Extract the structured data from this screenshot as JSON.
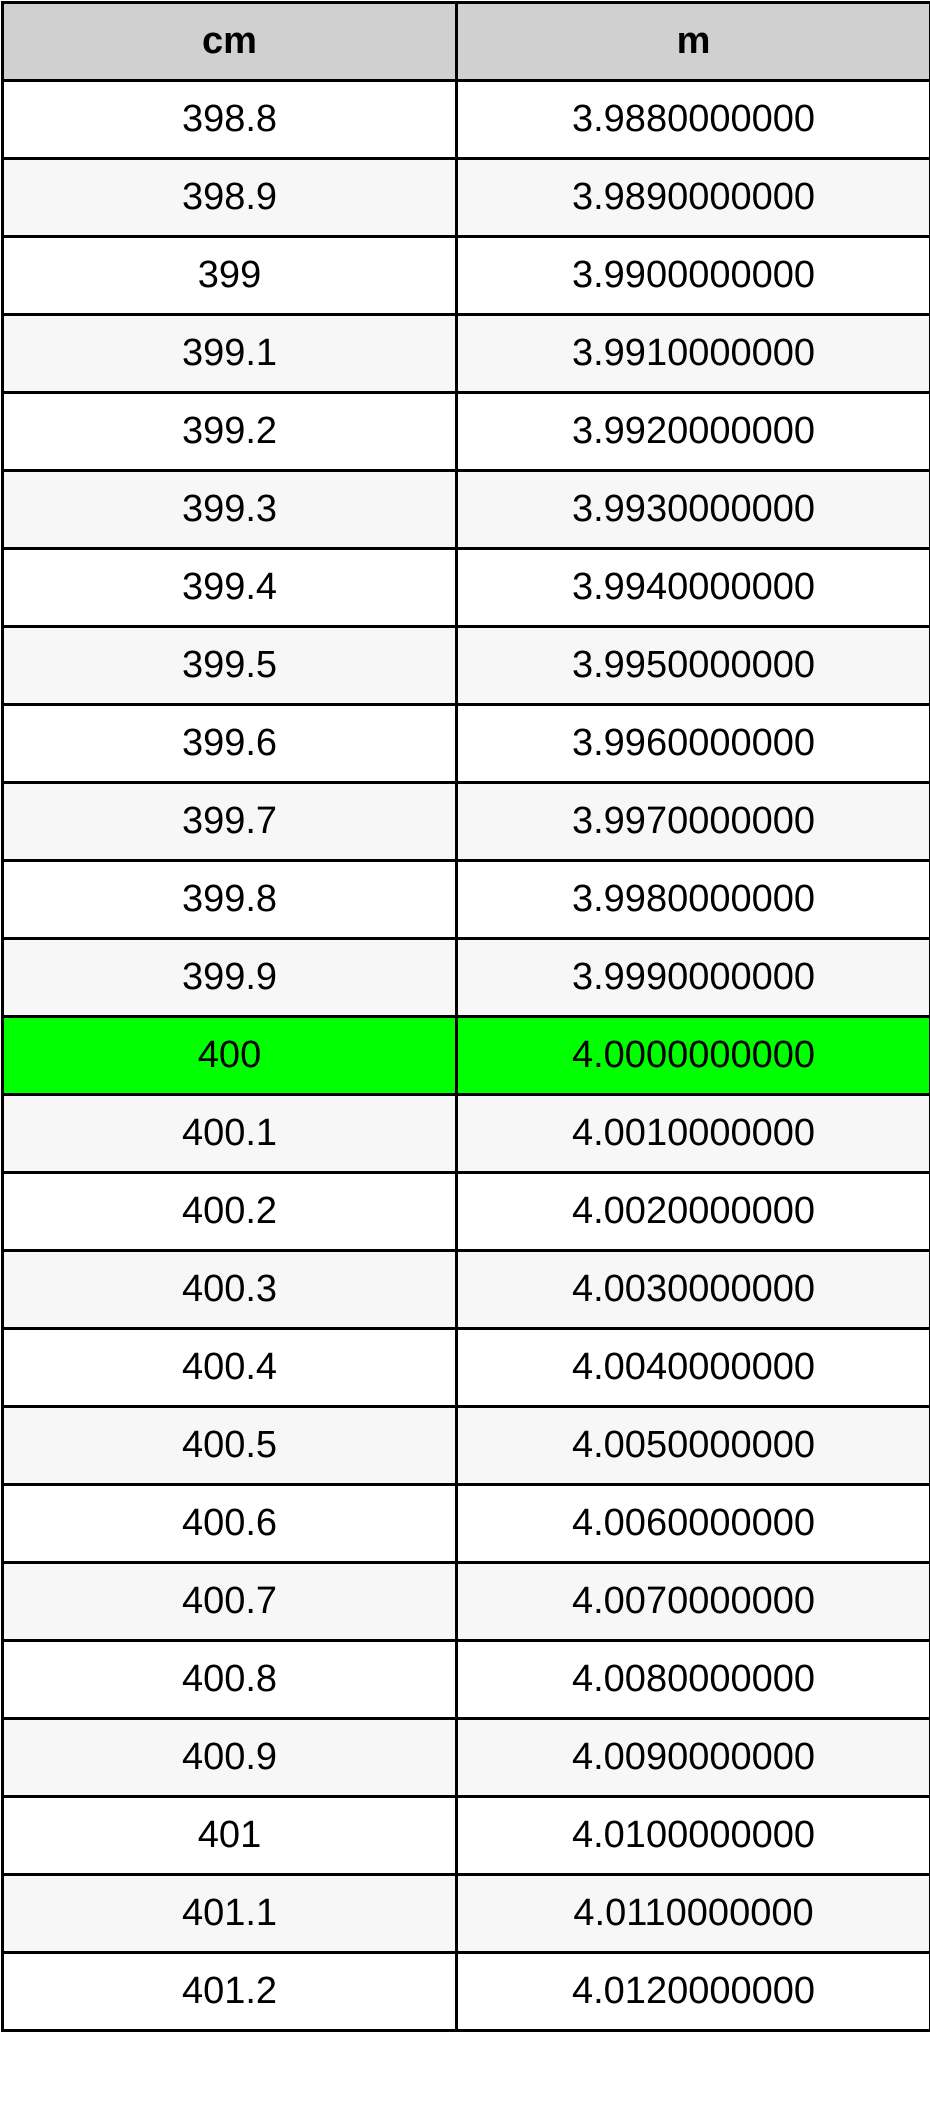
{
  "table": {
    "headers": [
      "cm",
      "m"
    ],
    "highlight_color": "#00ff00",
    "highlighted_row": 12,
    "rows": [
      [
        "398.8",
        "3.9880000000"
      ],
      [
        "398.9",
        "3.9890000000"
      ],
      [
        "399",
        "3.9900000000"
      ],
      [
        "399.1",
        "3.9910000000"
      ],
      [
        "399.2",
        "3.9920000000"
      ],
      [
        "399.3",
        "3.9930000000"
      ],
      [
        "399.4",
        "3.9940000000"
      ],
      [
        "399.5",
        "3.9950000000"
      ],
      [
        "399.6",
        "3.9960000000"
      ],
      [
        "399.7",
        "3.9970000000"
      ],
      [
        "399.8",
        "3.9980000000"
      ],
      [
        "399.9",
        "3.9990000000"
      ],
      [
        "400",
        "4.0000000000"
      ],
      [
        "400.1",
        "4.0010000000"
      ],
      [
        "400.2",
        "4.0020000000"
      ],
      [
        "400.3",
        "4.0030000000"
      ],
      [
        "400.4",
        "4.0040000000"
      ],
      [
        "400.5",
        "4.0050000000"
      ],
      [
        "400.6",
        "4.0060000000"
      ],
      [
        "400.7",
        "4.0070000000"
      ],
      [
        "400.8",
        "4.0080000000"
      ],
      [
        "400.9",
        "4.0090000000"
      ],
      [
        "401",
        "4.0100000000"
      ],
      [
        "401.1",
        "4.0110000000"
      ],
      [
        "401.2",
        "4.0120000000"
      ]
    ]
  }
}
